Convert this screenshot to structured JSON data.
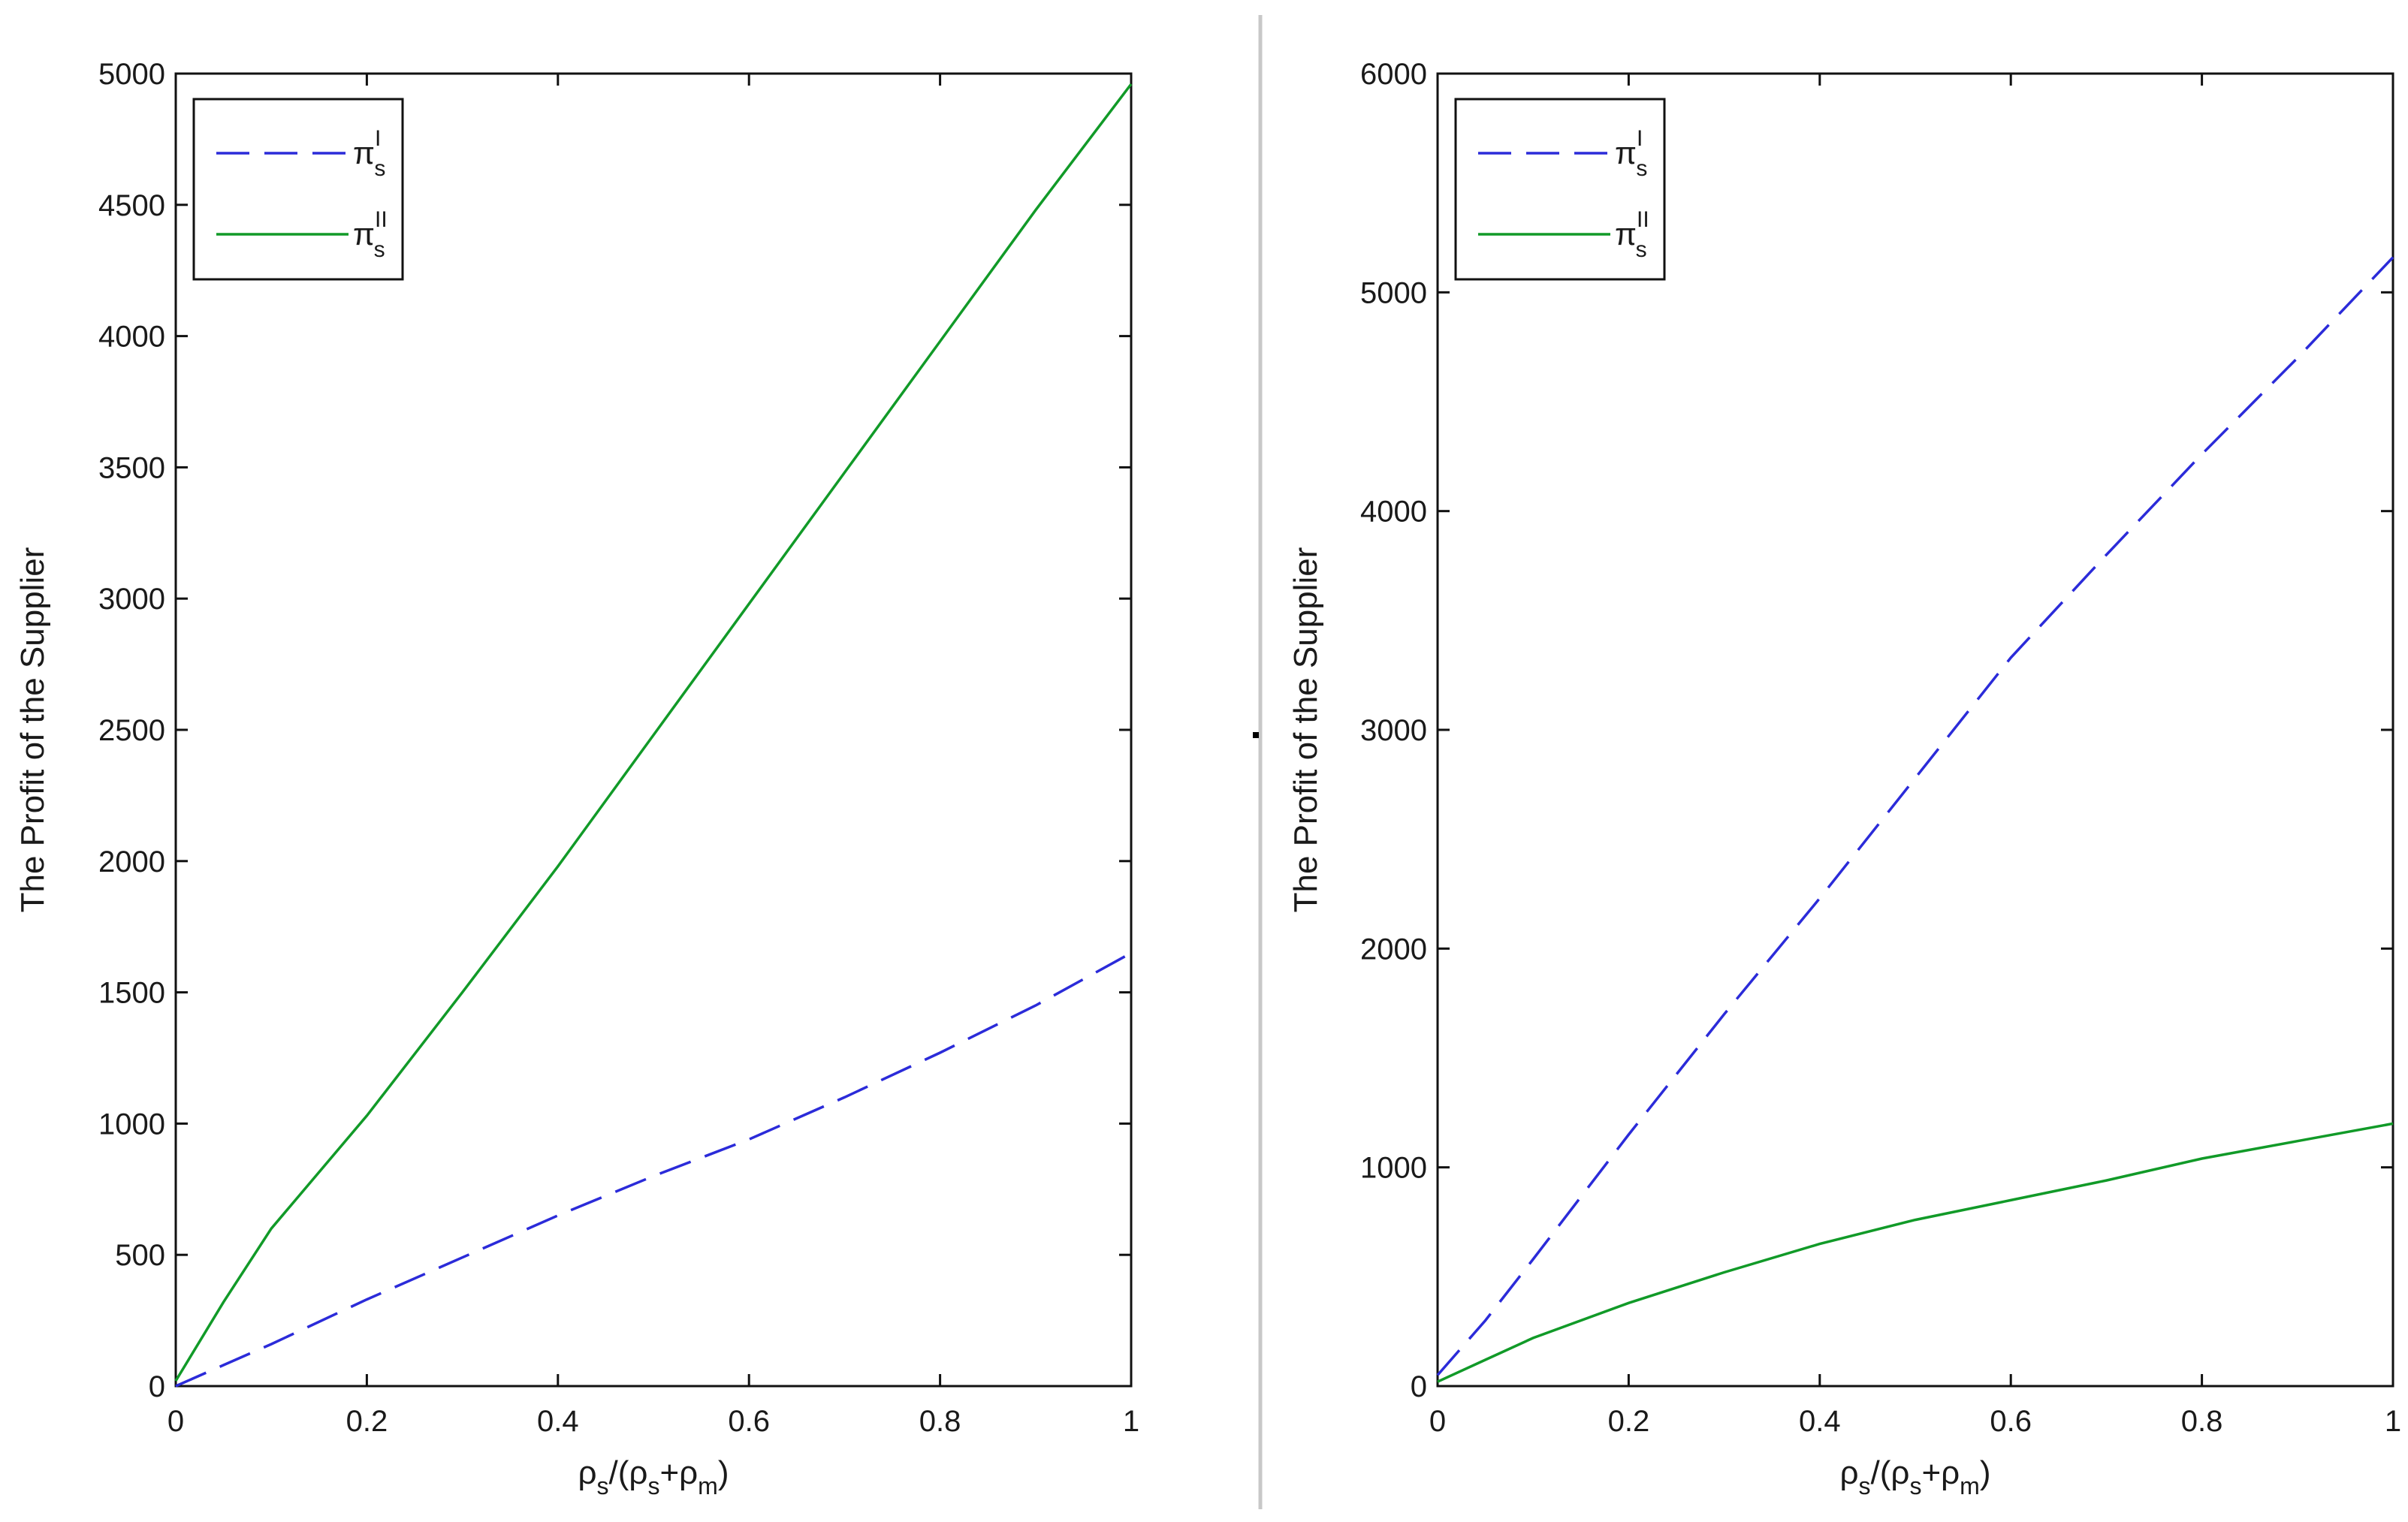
{
  "chart_data": [
    {
      "type": "line",
      "title": "",
      "ylabel": "The Profit of the Supplier",
      "xlabel": {
        "rho": "ρ",
        "s": "s",
        "open": "/(ρ",
        "plus": "+ρ",
        "m": "m",
        "close": ")"
      },
      "xlim": [
        0,
        1
      ],
      "ylim": [
        0,
        5000
      ],
      "xticks": [
        0,
        0.2,
        0.4,
        0.6,
        0.8,
        1
      ],
      "xtick_labels": [
        "0",
        "0.2",
        "0.4",
        "0.6",
        "0.8",
        "1"
      ],
      "yticks": [
        0,
        500,
        1000,
        1500,
        2000,
        2500,
        3000,
        3500,
        4000,
        4500,
        5000
      ],
      "ytick_labels": [
        "0",
        "500",
        "1000",
        "1500",
        "2000",
        "2500",
        "3000",
        "3500",
        "4000",
        "4500",
        "5000"
      ],
      "legend_position": "top-left",
      "series": [
        {
          "name": {
            "pi": "π",
            "sub": "s",
            "sup": "I"
          },
          "color": "#2b2bd9",
          "dash": true,
          "x": [
            0,
            0.05,
            0.1,
            0.2,
            0.3,
            0.4,
            0.5,
            0.6,
            0.7,
            0.8,
            0.9,
            1.0
          ],
          "values": [
            0,
            80,
            160,
            330,
            490,
            650,
            800,
            940,
            1100,
            1270,
            1450,
            1650
          ]
        },
        {
          "name": {
            "pi": "π",
            "sub": "s",
            "sup": "II"
          },
          "color": "#119a28",
          "dash": false,
          "x": [
            0,
            0.05,
            0.1,
            0.2,
            0.3,
            0.4,
            0.5,
            0.6,
            0.7,
            0.8,
            0.9,
            1.0
          ],
          "values": [
            20,
            320,
            600,
            1030,
            1500,
            1980,
            2480,
            2980,
            3480,
            3980,
            4480,
            4960
          ]
        }
      ]
    },
    {
      "type": "line",
      "title": "",
      "ylabel": "The Profit of the Supplier",
      "xlabel": {
        "rho": "ρ",
        "s": "s",
        "open": "/(ρ",
        "plus": "+ρ",
        "m": "m",
        "close": ")"
      },
      "xlim": [
        0,
        1
      ],
      "ylim": [
        0,
        6000
      ],
      "xticks": [
        0,
        0.2,
        0.4,
        0.6,
        0.8,
        1
      ],
      "xtick_labels": [
        "0",
        "0.2",
        "0.4",
        "0.6",
        "0.8",
        "1"
      ],
      "yticks": [
        0,
        1000,
        2000,
        3000,
        4000,
        5000,
        6000
      ],
      "ytick_labels": [
        "0",
        "1000",
        "2000",
        "3000",
        "4000",
        "5000",
        "6000"
      ],
      "legend_position": "top-left",
      "series": [
        {
          "name": {
            "pi": "π",
            "sub": "s",
            "sup": "I"
          },
          "color": "#2b2bd9",
          "dash": true,
          "x": [
            0,
            0.05,
            0.1,
            0.2,
            0.3,
            0.4,
            0.5,
            0.6,
            0.7,
            0.8,
            0.9,
            1.0
          ],
          "values": [
            50,
            300,
            580,
            1150,
            1700,
            2230,
            2780,
            3330,
            3800,
            4260,
            4700,
            5160
          ]
        },
        {
          "name": {
            "pi": "π",
            "sub": "s",
            "sup": "II"
          },
          "color": "#119a28",
          "dash": false,
          "x": [
            0,
            0.05,
            0.1,
            0.2,
            0.3,
            0.4,
            0.5,
            0.6,
            0.7,
            0.8,
            0.9,
            1.0
          ],
          "values": [
            20,
            120,
            220,
            380,
            520,
            650,
            760,
            850,
            940,
            1040,
            1120,
            1200
          ]
        }
      ]
    }
  ]
}
